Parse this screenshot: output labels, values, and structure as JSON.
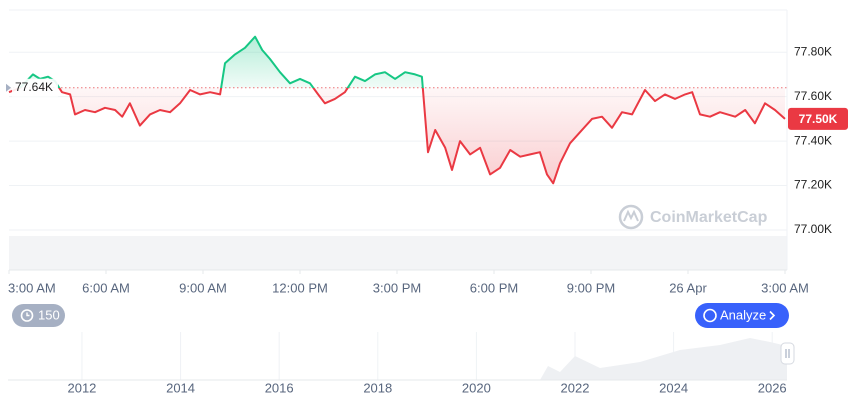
{
  "chart_data": [
    {
      "type": "line",
      "x": [
        0,
        0.34,
        0.74,
        0.96,
        1.21,
        1.42,
        1.64,
        1.89,
        2.04,
        2.35,
        2.66,
        2.97,
        3.28,
        3.5,
        3.74,
        4.05,
        4.36,
        4.67,
        4.98,
        5.29,
        5.6,
        5.91,
        6.22,
        6.53,
        6.68,
        6.99,
        7.3,
        7.61,
        7.83,
        8.07,
        8.38,
        8.69,
        9,
        9.31,
        9.56,
        9.77,
        10.08,
        10.39,
        10.7,
        11.01,
        11.32,
        11.63,
        11.94,
        12.25,
        12.56,
        12.77,
        12.96,
        13.18,
        13.49,
        13.7,
        13.95,
        14.26,
        14.57,
        14.88,
        15.19,
        15.5,
        15.81,
        16.12,
        16.42,
        16.64,
        16.83,
        17.04,
        17.35,
        17.66,
        18.03,
        18.34,
        18.65,
        18.96,
        19.27,
        19.67,
        19.98,
        20.29,
        20.6,
        20.91,
        21.13,
        21.37,
        21.68,
        21.99,
        22.46,
        22.77,
        23.07,
        23.38,
        23.69,
        24
      ],
      "series": [
        {
          "values": [
            77.62,
            77.64,
            77.7,
            77.68,
            77.69,
            77.67,
            77.62,
            77.61,
            77.52,
            77.54,
            77.53,
            77.55,
            77.54,
            77.51,
            77.57,
            77.47,
            77.52,
            77.54,
            77.53,
            77.57,
            77.63,
            77.61,
            77.62,
            77.61,
            77.75,
            77.79,
            77.82,
            77.87,
            77.81,
            77.77,
            77.71,
            77.66,
            77.68,
            77.66,
            77.61,
            77.57,
            77.59,
            77.62,
            77.69,
            77.67,
            77.7,
            77.71,
            77.68,
            77.71,
            77.7,
            77.69,
            77.35,
            77.45,
            77.37,
            77.27,
            77.4,
            77.34,
            77.37,
            77.25,
            77.28,
            77.36,
            77.33,
            77.34,
            77.35,
            77.25,
            77.21,
            77.3,
            77.39,
            77.44,
            77.5,
            77.51,
            77.46,
            77.53,
            77.52,
            77.63,
            77.58,
            77.61,
            77.59,
            77.61,
            77.62,
            77.52,
            77.51,
            77.53,
            77.51,
            77.54,
            77.48,
            77.57,
            77.54,
            77.5
          ]
        }
      ],
      "up_color": "#16c784",
      "down_color": "#ea3943",
      "baseline": {
        "value": 77.64,
        "label": "77.64K"
      },
      "last_price": {
        "value": 77.5,
        "label": "77.50K"
      },
      "xlim": [
        0,
        24
      ],
      "xticks": [
        {
          "value": 0,
          "label": "3:00 AM"
        },
        {
          "value": 3,
          "label": "6:00 AM"
        },
        {
          "value": 6,
          "label": "9:00 AM"
        },
        {
          "value": 9,
          "label": "12:00 PM"
        },
        {
          "value": 12,
          "label": "3:00 PM"
        },
        {
          "value": 15,
          "label": "6:00 PM"
        },
        {
          "value": 18,
          "label": "9:00 PM"
        },
        {
          "value": 21,
          "label": "26 Apr"
        },
        {
          "value": 24,
          "label": "3:00 AM"
        }
      ],
      "ylim": [
        76.82,
        77.99
      ],
      "yticks": [
        {
          "value": 77,
          "label": "77.00K"
        },
        {
          "value": 77.2,
          "label": "77.20K"
        },
        {
          "value": 77.4,
          "label": "77.40K"
        },
        {
          "value": 77.6,
          "label": "77.60K"
        },
        {
          "value": 77.8,
          "label": "77.80K"
        }
      ],
      "grid": true,
      "watermark": "CoinMarketCap"
    },
    {
      "type": "navigator",
      "xlim": [
        2010.5,
        2026.3
      ],
      "xticks": [
        2012,
        2014,
        2016,
        2018,
        2020,
        2022,
        2024,
        2026
      ]
    }
  ],
  "controls": {
    "zoom": "150",
    "analyze": "Analyze"
  }
}
